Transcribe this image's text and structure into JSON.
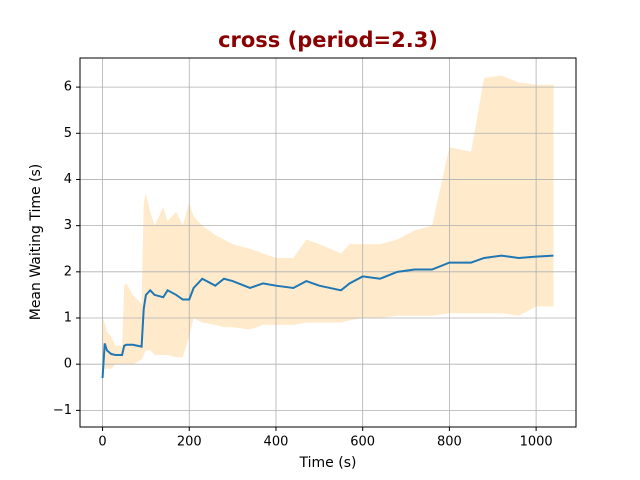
{
  "chart_data": {
    "type": "line",
    "title": "cross (period=2.3)",
    "title_color": "#8b0000",
    "xlabel": "Time (s)",
    "ylabel": "Mean Waiting Time (s)",
    "x": [
      0,
      5,
      10,
      20,
      30,
      45,
      50,
      55,
      70,
      90,
      95,
      100,
      110,
      120,
      140,
      150,
      170,
      185,
      200,
      210,
      230,
      260,
      280,
      300,
      340,
      370,
      400,
      440,
      470,
      500,
      550,
      570,
      600,
      640,
      680,
      720,
      760,
      800,
      850,
      880,
      920,
      960,
      1000,
      1040
    ],
    "series": [
      {
        "color": "#1f77b4",
        "values": [
          -0.3,
          0.45,
          0.3,
          0.22,
          0.2,
          0.2,
          0.4,
          0.42,
          0.42,
          0.38,
          1.2,
          1.5,
          1.6,
          1.5,
          1.45,
          1.6,
          1.5,
          1.4,
          1.4,
          1.65,
          1.85,
          1.7,
          1.85,
          1.8,
          1.65,
          1.75,
          1.7,
          1.65,
          1.8,
          1.7,
          1.6,
          1.75,
          1.9,
          1.85,
          2.0,
          2.05,
          2.05,
          2.2,
          2.2,
          2.3,
          2.35,
          2.3,
          2.33,
          2.35
        ]
      }
    ],
    "band": {
      "color": "#ffebcc",
      "upper": [
        1.0,
        0.9,
        0.7,
        0.6,
        0.4,
        0.4,
        1.7,
        1.75,
        1.5,
        1.3,
        3.5,
        3.7,
        3.3,
        3.0,
        3.4,
        3.1,
        3.3,
        3.0,
        3.5,
        3.2,
        3.0,
        2.8,
        2.7,
        2.6,
        2.5,
        2.4,
        2.3,
        2.3,
        2.7,
        2.6,
        2.4,
        2.6,
        2.6,
        2.6,
        2.7,
        2.9,
        3.0,
        4.7,
        4.6,
        6.2,
        6.25,
        6.1,
        6.05,
        6.05
      ],
      "lower": [
        0.0,
        -0.1,
        -0.1,
        -0.1,
        0.0,
        0.0,
        0.0,
        0.0,
        0.0,
        0.1,
        0.2,
        0.3,
        0.3,
        0.2,
        0.2,
        0.2,
        0.15,
        0.15,
        0.6,
        1.0,
        0.9,
        0.85,
        0.8,
        0.8,
        0.75,
        0.85,
        0.85,
        0.85,
        0.9,
        0.9,
        0.9,
        0.95,
        1.0,
        1.0,
        1.05,
        1.05,
        1.05,
        1.1,
        1.1,
        1.1,
        1.1,
        1.05,
        1.25,
        1.25
      ]
    },
    "xlim": [
      -52,
      1092
    ],
    "ylim": [
      -1.36,
      6.63
    ],
    "xticks": [
      0,
      200,
      400,
      600,
      800,
      1000
    ],
    "yticks": [
      {
        "value": -1,
        "label": "−1"
      },
      0,
      1,
      2,
      3,
      4,
      5,
      6
    ],
    "grid": true
  }
}
